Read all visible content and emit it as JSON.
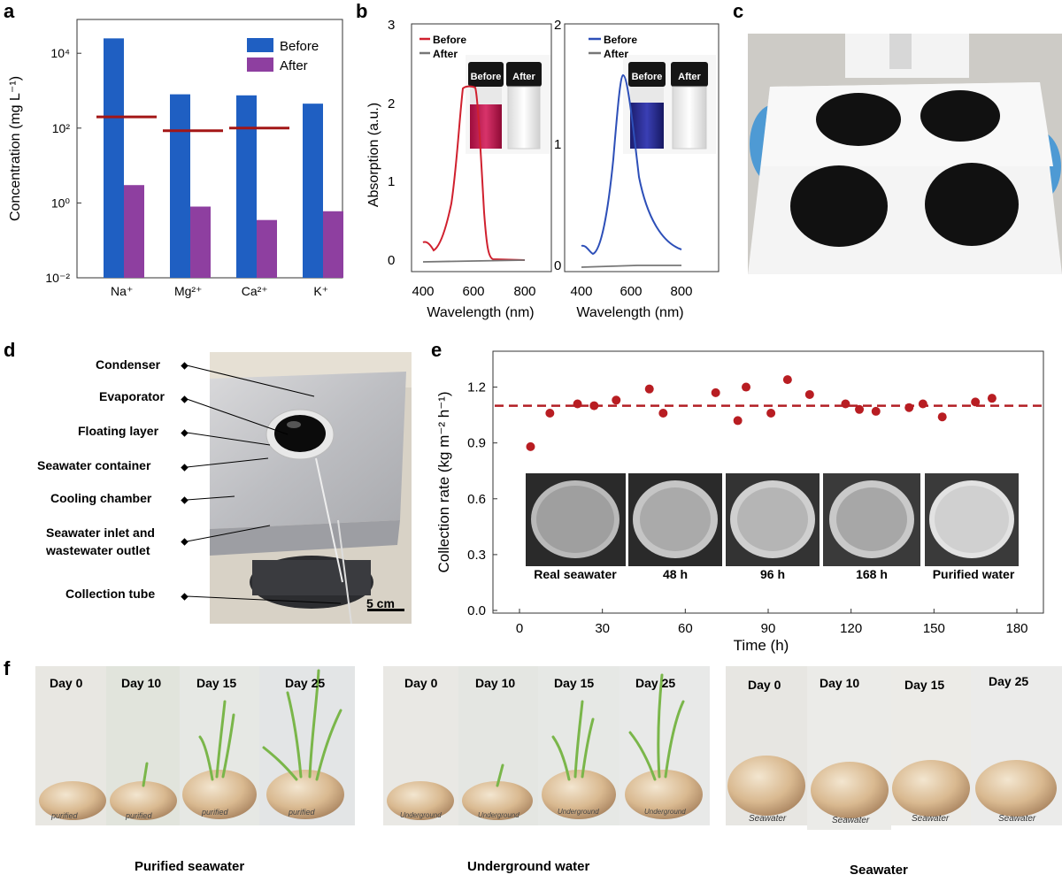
{
  "panels": {
    "a": "a",
    "b": "b",
    "c": "c",
    "d": "d",
    "e": "e",
    "f": "f"
  },
  "colors": {
    "before": "#1f5fc2",
    "after": "#8e3fa0",
    "limit": "#a31616",
    "red_curve": "#d0202e",
    "blue_curve": "#2d4fb8",
    "gray_curve": "#777777",
    "point": "#b81d22",
    "dash": "#b21e24"
  },
  "chart_a": {
    "type": "bar",
    "categories": [
      "Na⁺",
      "Mg²⁺",
      "Ca²⁺",
      "K⁺"
    ],
    "series": [
      {
        "name": "Before",
        "values": [
          25000,
          800,
          750,
          450
        ]
      },
      {
        "name": "After",
        "values": [
          3,
          0.8,
          0.35,
          0.6
        ]
      }
    ],
    "limits": [
      200,
      85,
      100
    ],
    "ylabel": "Concentration (mg L⁻¹)",
    "yticks": [
      "10⁻²",
      "10⁰",
      "10²",
      "10⁴"
    ],
    "ylim": [
      0.01,
      80000
    ]
  },
  "chart_b1": {
    "type": "line",
    "ylabel": "Absorption (a.u.)",
    "xlabel": "Wavelength (nm)",
    "xticks": [
      "400",
      "600",
      "800"
    ],
    "yticks": [
      "0",
      "1",
      "2",
      "3"
    ],
    "legend": [
      "Before",
      "After"
    ],
    "vial_labels": [
      "Before",
      "After"
    ]
  },
  "chart_b2": {
    "type": "line",
    "xlabel": "Wavelength (nm)",
    "xticks": [
      "400",
      "600",
      "800"
    ],
    "yticks": [
      "0",
      "1",
      "2"
    ],
    "legend": [
      "Before",
      "After"
    ],
    "vial_labels": [
      "Before",
      "After"
    ]
  },
  "chart_e": {
    "type": "scatter",
    "xlabel": "Time (h)",
    "ylabel": "Collection rate (kg m⁻² h⁻¹)",
    "xticks": [
      "0",
      "30",
      "60",
      "90",
      "120",
      "150",
      "180"
    ],
    "yticks": [
      "0.0",
      "0.3",
      "0.6",
      "0.9",
      "1.2"
    ],
    "x": [
      4,
      11,
      21,
      27,
      35,
      47,
      52,
      71,
      79,
      82,
      91,
      97,
      105,
      118,
      123,
      129,
      141,
      146,
      153,
      165,
      171
    ],
    "y": [
      0.88,
      1.06,
      1.11,
      1.1,
      1.13,
      1.19,
      1.06,
      1.17,
      1.02,
      1.2,
      1.06,
      1.24,
      1.16,
      1.11,
      1.08,
      1.07,
      1.09,
      1.11,
      1.04,
      1.12,
      1.14
    ],
    "mean": 1.1,
    "inset_labels": [
      "Real seawater",
      "48 h",
      "96 h",
      "168 h",
      "Purified water"
    ]
  },
  "panel_d": {
    "labels": [
      "Condenser",
      "Evaporator",
      "Floating layer",
      "Seawater container",
      "Cooling chamber",
      "Seawater inlet and",
      "wastewater outlet",
      "Collection tube"
    ],
    "scale": "5 cm"
  },
  "panel_f": {
    "groups": [
      {
        "caption": "Purified seawater",
        "days": [
          "Day 0",
          "Day 10",
          "Day 15",
          "Day 25"
        ],
        "tag": "purified"
      },
      {
        "caption": "Underground water",
        "days": [
          "Day 0",
          "Day 10",
          "Day 15",
          "Day 25"
        ],
        "tag": "Underground"
      },
      {
        "caption": "Seawater",
        "days": [
          "Day 0",
          "Day 10",
          "Day 15",
          "Day 25"
        ],
        "tag": "Seawater"
      }
    ]
  }
}
